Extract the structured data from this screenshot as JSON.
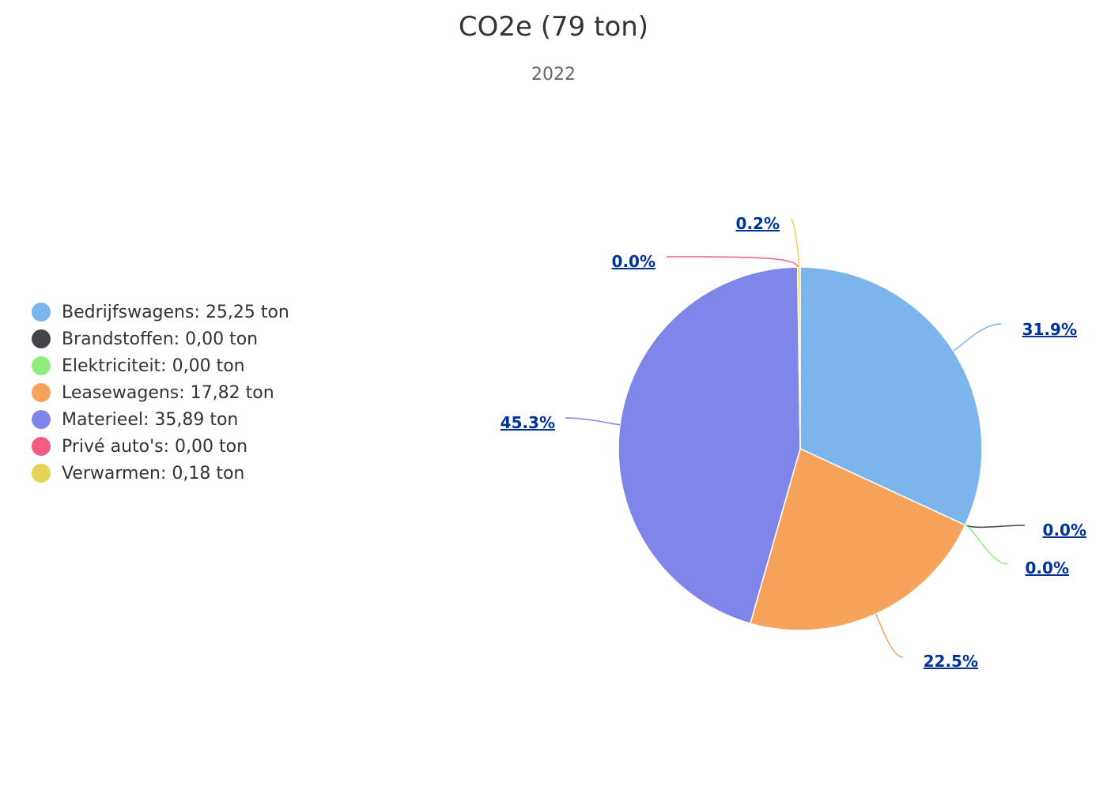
{
  "chart_data": {
    "type": "pie",
    "title": "CO2e (79 ton)",
    "subtitle": "2022",
    "unit": "ton",
    "legend_position": "left",
    "series": [
      {
        "data": [
          {
            "name": "Bedrijfswagens",
            "value": 25.25,
            "percent": 31.9,
            "percent_label": "31.9%",
            "legend_label": "Bedrijfswagens: 25,25 ton",
            "color": "#7cb5ec"
          },
          {
            "name": "Brandstoffen",
            "value": 0.0,
            "percent": 0.0,
            "percent_label": "0.0%",
            "legend_label": "Brandstoffen: 0,00 ton",
            "color": "#434348"
          },
          {
            "name": "Elektriciteit",
            "value": 0.0,
            "percent": 0.0,
            "percent_label": "0.0%",
            "legend_label": "Elektriciteit: 0,00 ton",
            "color": "#90ed7d"
          },
          {
            "name": "Leasewagens",
            "value": 17.82,
            "percent": 22.5,
            "percent_label": "22.5%",
            "legend_label": "Leasewagens: 17,82 ton",
            "color": "#f7a35c"
          },
          {
            "name": "Materieel",
            "value": 35.89,
            "percent": 45.3,
            "percent_label": "45.3%",
            "legend_label": "Materieel: 35,89 ton",
            "color": "#8085e9"
          },
          {
            "name": "Privé auto's",
            "value": 0.0,
            "percent": 0.0,
            "percent_label": "0.0%",
            "legend_label": "Privé auto's: 0,00 ton",
            "color": "#f15c80"
          },
          {
            "name": "Verwarmen",
            "value": 0.18,
            "percent": 0.2,
            "percent_label": "0.2%",
            "legend_label": "Verwarmen: 0,18 ton",
            "color": "#e4d354"
          }
        ]
      }
    ]
  }
}
